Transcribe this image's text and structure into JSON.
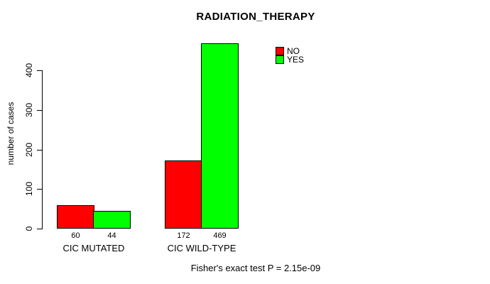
{
  "chart_data": {
    "type": "bar",
    "title": "RADIATION_THERAPY",
    "ylabel": "number of cases",
    "xlabel": "",
    "categories": [
      "CIC MUTATED",
      "CIC WILD-TYPE"
    ],
    "series": [
      {
        "name": "NO",
        "color": "#ff0000",
        "values": [
          60,
          172
        ]
      },
      {
        "name": "YES",
        "color": "#00ff00",
        "values": [
          44,
          469
        ]
      }
    ],
    "yticks": [
      0,
      100,
      200,
      300,
      400
    ],
    "ylim": [
      0,
      470
    ],
    "grid": false,
    "legend_position": "top-right",
    "annotation": "Fisher's exact test P = 2.15e-09"
  }
}
